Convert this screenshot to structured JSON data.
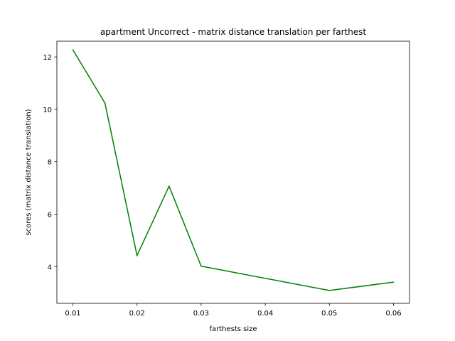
{
  "chart_data": {
    "type": "line",
    "title": "apartment Uncorrect - matrix distance translation per farthest",
    "xlabel": "farthests size",
    "ylabel": "scores (matrix distance translation)",
    "xlim": [
      0.0075,
      0.0625
    ],
    "ylim": [
      2.6,
      12.6
    ],
    "xticks": [
      0.01,
      0.02,
      0.03,
      0.04,
      0.05,
      0.06
    ],
    "xtick_labels": [
      "0.01",
      "0.02",
      "0.03",
      "0.04",
      "0.05",
      "0.06"
    ],
    "yticks": [
      4,
      6,
      8,
      10,
      12
    ],
    "ytick_labels": [
      "4",
      "6",
      "8",
      "10",
      "12"
    ],
    "grid": false,
    "series": [
      {
        "color": "#008000",
        "x": [
          0.01,
          0.015,
          0.02,
          0.025,
          0.03,
          0.05,
          0.06
        ],
        "y": [
          12.27,
          10.24,
          4.42,
          7.07,
          4.02,
          3.09,
          3.41
        ]
      }
    ]
  }
}
